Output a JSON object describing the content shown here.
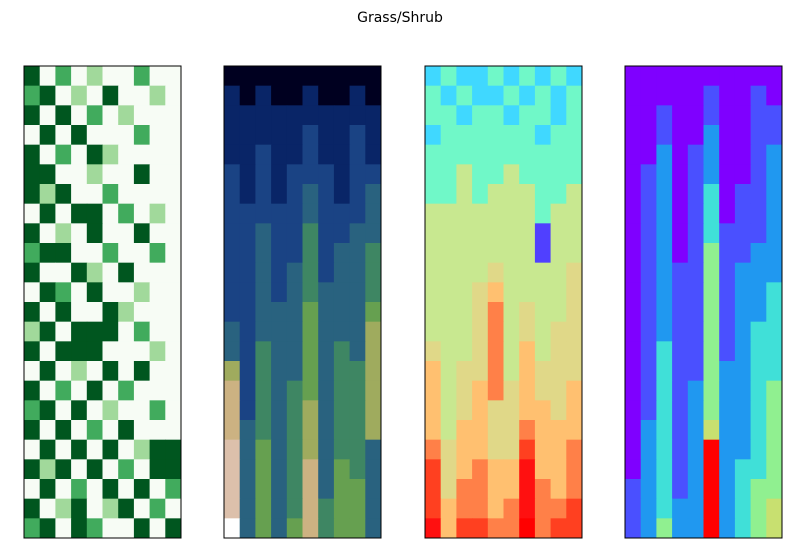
{
  "chart_data": {
    "type": "heatmap",
    "title": "Grass/Shrub",
    "panels": [
      {
        "vlim": [
          0,
          3
        ],
        "colors": [
          "#f7fcf5",
          "#a1d99b",
          "#41ab5d",
          "#00561f"
        ],
        "values": [
          [
            3,
            0,
            2,
            0,
            1,
            0,
            0,
            2,
            0,
            0
          ],
          [
            2,
            3,
            0,
            1,
            0,
            3,
            0,
            0,
            1,
            0
          ],
          [
            3,
            0,
            3,
            0,
            2,
            0,
            1,
            0,
            0,
            0
          ],
          [
            0,
            3,
            0,
            3,
            0,
            0,
            0,
            2,
            0,
            0
          ],
          [
            3,
            0,
            2,
            0,
            3,
            1,
            0,
            0,
            0,
            0
          ],
          [
            3,
            3,
            0,
            0,
            1,
            0,
            0,
            3,
            0,
            0
          ],
          [
            3,
            1,
            3,
            0,
            0,
            2,
            0,
            0,
            0,
            0
          ],
          [
            0,
            3,
            0,
            3,
            3,
            0,
            2,
            0,
            1,
            0
          ],
          [
            3,
            0,
            1,
            0,
            3,
            0,
            0,
            3,
            0,
            0
          ],
          [
            2,
            3,
            3,
            0,
            0,
            2,
            0,
            0,
            2,
            0
          ],
          [
            3,
            0,
            0,
            3,
            1,
            0,
            3,
            0,
            0,
            0
          ],
          [
            0,
            3,
            2,
            0,
            3,
            0,
            0,
            1,
            0,
            0
          ],
          [
            3,
            0,
            3,
            0,
            0,
            3,
            1,
            0,
            0,
            0
          ],
          [
            1,
            3,
            0,
            3,
            3,
            3,
            0,
            2,
            0,
            0
          ],
          [
            3,
            0,
            3,
            3,
            3,
            0,
            0,
            0,
            1,
            0
          ],
          [
            0,
            3,
            0,
            1,
            0,
            3,
            0,
            3,
            0,
            0
          ],
          [
            3,
            0,
            2,
            0,
            3,
            0,
            2,
            0,
            0,
            0
          ],
          [
            2,
            3,
            0,
            3,
            0,
            1,
            0,
            0,
            2,
            0
          ],
          [
            3,
            0,
            3,
            0,
            2,
            0,
            3,
            0,
            0,
            0
          ],
          [
            0,
            3,
            0,
            3,
            0,
            3,
            0,
            1,
            3,
            3
          ],
          [
            3,
            1,
            3,
            0,
            3,
            0,
            2,
            0,
            3,
            3
          ],
          [
            0,
            3,
            0,
            2,
            0,
            3,
            0,
            3,
            0,
            2
          ],
          [
            3,
            0,
            1,
            3,
            0,
            1,
            3,
            0,
            2,
            0
          ],
          [
            2,
            3,
            0,
            3,
            2,
            0,
            0,
            3,
            0,
            3
          ]
        ]
      },
      {
        "vlim": [
          0,
          9
        ],
        "colors": [
          "#000020",
          "#0a2a70",
          "#1e4a8a",
          "#2e6e7a",
          "#4a9a50",
          "#8aa850",
          "#c8b07a",
          "#d8b8a0",
          "#ffffff"
        ],
        "values": [
          [
            0,
            0,
            0,
            0,
            0,
            0,
            0,
            0,
            0,
            0
          ],
          [
            1,
            0,
            1,
            0,
            0,
            1,
            0,
            0,
            1,
            0
          ],
          [
            1,
            1,
            1,
            1,
            1,
            1,
            1,
            1,
            1,
            1
          ],
          [
            1,
            1,
            1,
            1,
            1,
            2,
            1,
            1,
            2,
            1
          ],
          [
            1,
            1,
            2,
            1,
            1,
            2,
            1,
            1,
            2,
            1
          ],
          [
            2,
            1,
            2,
            1,
            2,
            2,
            2,
            1,
            2,
            2
          ],
          [
            2,
            1,
            2,
            1,
            2,
            3,
            2,
            1,
            2,
            3
          ],
          [
            2,
            2,
            2,
            2,
            2,
            3,
            2,
            2,
            2,
            3
          ],
          [
            2,
            2,
            3,
            2,
            2,
            4,
            2,
            2,
            3,
            3
          ],
          [
            2,
            2,
            3,
            2,
            2,
            4,
            2,
            3,
            3,
            4
          ],
          [
            2,
            2,
            3,
            2,
            3,
            4,
            2,
            3,
            3,
            4
          ],
          [
            2,
            2,
            3,
            2,
            3,
            4,
            3,
            3,
            3,
            4
          ],
          [
            2,
            2,
            3,
            3,
            3,
            5,
            3,
            3,
            3,
            5
          ],
          [
            3,
            2,
            3,
            3,
            3,
            5,
            3,
            3,
            3,
            6
          ],
          [
            3,
            2,
            4,
            3,
            3,
            5,
            3,
            4,
            3,
            6
          ],
          [
            6,
            2,
            4,
            3,
            3,
            5,
            3,
            4,
            4,
            6
          ],
          [
            7,
            2,
            4,
            3,
            4,
            5,
            3,
            4,
            4,
            6
          ],
          [
            7,
            2,
            4,
            3,
            4,
            6,
            3,
            4,
            4,
            6
          ],
          [
            7,
            3,
            4,
            3,
            4,
            6,
            3,
            4,
            4,
            6
          ],
          [
            8,
            3,
            5,
            3,
            4,
            6,
            3,
            4,
            4,
            3
          ],
          [
            8,
            3,
            5,
            3,
            4,
            7,
            3,
            5,
            4,
            3
          ],
          [
            8,
            3,
            5,
            3,
            4,
            7,
            3,
            5,
            5,
            3
          ],
          [
            8,
            3,
            5,
            3,
            4,
            7,
            4,
            5,
            5,
            3
          ],
          [
            9,
            3,
            5,
            3,
            5,
            7,
            4,
            5,
            5,
            3
          ]
        ]
      },
      {
        "vlim": [
          0,
          9
        ],
        "colors": [
          "#5040ff",
          "#40d8ff",
          "#70f8c8",
          "#c8e890",
          "#e0d888",
          "#ffc070",
          "#ff8048",
          "#ff4020",
          "#ff1010",
          "#ff0000"
        ],
        "values": [
          [
            1,
            2,
            1,
            1,
            2,
            1,
            2,
            1,
            2,
            1
          ],
          [
            2,
            1,
            2,
            1,
            1,
            2,
            1,
            2,
            1,
            2
          ],
          [
            2,
            2,
            1,
            2,
            2,
            1,
            2,
            2,
            1,
            2
          ],
          [
            1,
            2,
            2,
            2,
            2,
            2,
            2,
            1,
            2,
            2
          ],
          [
            2,
            2,
            2,
            2,
            2,
            2,
            2,
            2,
            2,
            2
          ],
          [
            2,
            2,
            3,
            2,
            2,
            3,
            2,
            2,
            2,
            2
          ],
          [
            2,
            2,
            3,
            2,
            3,
            3,
            3,
            2,
            2,
            3
          ],
          [
            3,
            3,
            3,
            3,
            3,
            3,
            3,
            2,
            3,
            3
          ],
          [
            3,
            3,
            3,
            3,
            3,
            3,
            3,
            0,
            3,
            3
          ],
          [
            3,
            3,
            3,
            3,
            3,
            3,
            3,
            0,
            3,
            3
          ],
          [
            3,
            3,
            3,
            3,
            4,
            3,
            3,
            3,
            3,
            4
          ],
          [
            3,
            3,
            3,
            4,
            5,
            3,
            3,
            3,
            3,
            4
          ],
          [
            3,
            3,
            3,
            4,
            6,
            3,
            4,
            3,
            3,
            4
          ],
          [
            3,
            3,
            3,
            4,
            6,
            3,
            4,
            3,
            4,
            4
          ],
          [
            4,
            3,
            3,
            4,
            6,
            3,
            5,
            3,
            4,
            4
          ],
          [
            5,
            3,
            4,
            4,
            6,
            3,
            5,
            4,
            4,
            4
          ],
          [
            5,
            3,
            4,
            5,
            6,
            4,
            5,
            4,
            4,
            5
          ],
          [
            5,
            3,
            4,
            5,
            4,
            4,
            5,
            5,
            4,
            5
          ],
          [
            5,
            3,
            5,
            5,
            4,
            4,
            6,
            5,
            5,
            5
          ],
          [
            6,
            4,
            5,
            5,
            4,
            4,
            7,
            5,
            5,
            6
          ],
          [
            7,
            4,
            5,
            6,
            5,
            5,
            8,
            5,
            5,
            6
          ],
          [
            7,
            4,
            6,
            6,
            5,
            5,
            8,
            6,
            5,
            6
          ],
          [
            7,
            5,
            6,
            6,
            5,
            6,
            8,
            6,
            6,
            7
          ],
          [
            8,
            5,
            7,
            7,
            6,
            6,
            9,
            6,
            7,
            7
          ]
        ]
      },
      {
        "vlim": [
          0,
          9
        ],
        "colors": [
          "#7f00ff",
          "#4a50ff",
          "#2098f0",
          "#40e0d8",
          "#90f090",
          "#c8e070",
          "#ffb060",
          "#ff7040",
          "#ff3020",
          "#ff0000"
        ],
        "values": [
          [
            0,
            0,
            0,
            0,
            0,
            0,
            0,
            0,
            0,
            0
          ],
          [
            0,
            0,
            0,
            0,
            0,
            1,
            0,
            0,
            1,
            0
          ],
          [
            0,
            0,
            1,
            0,
            0,
            1,
            0,
            0,
            1,
            1
          ],
          [
            0,
            0,
            1,
            0,
            0,
            2,
            0,
            0,
            1,
            1
          ],
          [
            0,
            0,
            2,
            0,
            1,
            2,
            0,
            0,
            1,
            2
          ],
          [
            0,
            1,
            2,
            0,
            1,
            2,
            0,
            0,
            1,
            2
          ],
          [
            0,
            1,
            2,
            0,
            1,
            3,
            0,
            1,
            1,
            2
          ],
          [
            0,
            1,
            2,
            0,
            1,
            3,
            0,
            1,
            1,
            2
          ],
          [
            0,
            1,
            2,
            0,
            1,
            3,
            1,
            1,
            1,
            2
          ],
          [
            0,
            1,
            2,
            0,
            1,
            4,
            1,
            1,
            2,
            2
          ],
          [
            0,
            1,
            2,
            1,
            1,
            4,
            1,
            2,
            2,
            2
          ],
          [
            0,
            1,
            2,
            1,
            1,
            4,
            1,
            2,
            2,
            3
          ],
          [
            0,
            1,
            2,
            1,
            1,
            4,
            1,
            2,
            2,
            3
          ],
          [
            0,
            1,
            2,
            1,
            1,
            4,
            1,
            2,
            3,
            3
          ],
          [
            0,
            1,
            3,
            1,
            1,
            4,
            1,
            2,
            3,
            3
          ],
          [
            0,
            1,
            3,
            1,
            1,
            4,
            2,
            2,
            3,
            3
          ],
          [
            0,
            1,
            3,
            1,
            2,
            4,
            2,
            2,
            3,
            4
          ],
          [
            0,
            1,
            3,
            1,
            2,
            4,
            2,
            2,
            3,
            4
          ],
          [
            0,
            2,
            3,
            1,
            2,
            5,
            2,
            2,
            3,
            4
          ],
          [
            0,
            2,
            3,
            1,
            2,
            9,
            2,
            2,
            3,
            4
          ],
          [
            0,
            2,
            3,
            1,
            2,
            9,
            2,
            3,
            3,
            4
          ],
          [
            1,
            2,
            3,
            1,
            2,
            9,
            2,
            3,
            4,
            4
          ],
          [
            1,
            2,
            3,
            2,
            2,
            9,
            2,
            3,
            4,
            5
          ],
          [
            1,
            2,
            4,
            2,
            2,
            9,
            2,
            3,
            4,
            5
          ]
        ]
      }
    ]
  }
}
